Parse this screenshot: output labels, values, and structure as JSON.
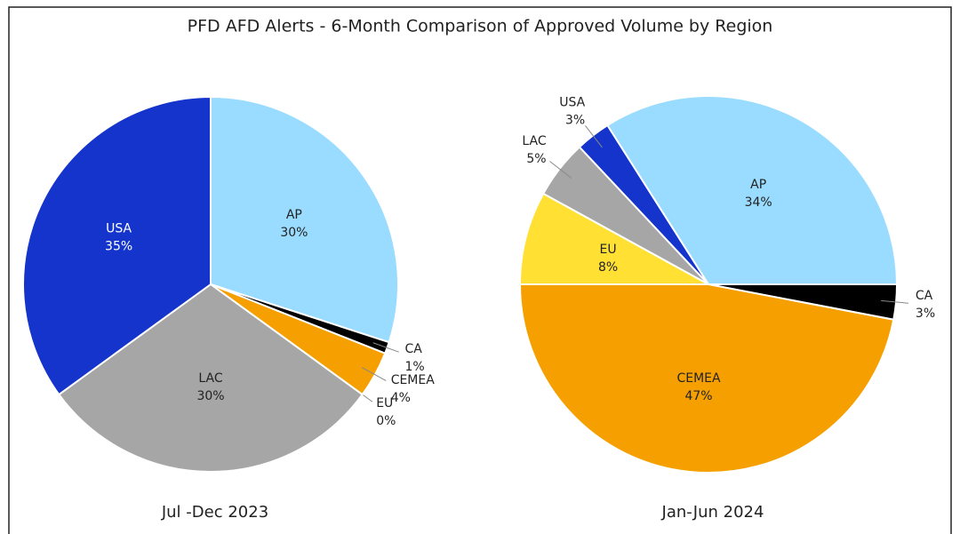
{
  "title": "PFD AFD Alerts - 6-Month Comparison of Approved Volume by Region",
  "chart_data": [
    {
      "type": "pie",
      "title": "Jul -Dec 2023",
      "start_angle": 0,
      "categories": [
        "AP",
        "CA",
        "CEMEA",
        "EU",
        "LAC",
        "USA"
      ],
      "values": [
        30,
        1,
        4,
        0,
        30,
        35
      ],
      "value_labels": [
        "30%",
        "1%",
        "4%",
        "0%",
        "30%",
        "35%"
      ],
      "colors": [
        "#99dcff",
        "#000000",
        "#f5a000",
        "#ffe033",
        "#a6a6a6",
        "#1434cb"
      ]
    },
    {
      "type": "pie",
      "title": "Jan-Jun 2024",
      "start_angle": 90,
      "categories": [
        "CA",
        "CEMEA",
        "EU",
        "LAC",
        "USA",
        "AP"
      ],
      "values": [
        3,
        47,
        8,
        5,
        3,
        34
      ],
      "value_labels": [
        "3%",
        "47%",
        "8%",
        "5%",
        "3%",
        "34%"
      ],
      "colors": [
        "#000000",
        "#f5a000",
        "#ffe033",
        "#a6a6a6",
        "#1434cb",
        "#99dcff"
      ]
    }
  ]
}
